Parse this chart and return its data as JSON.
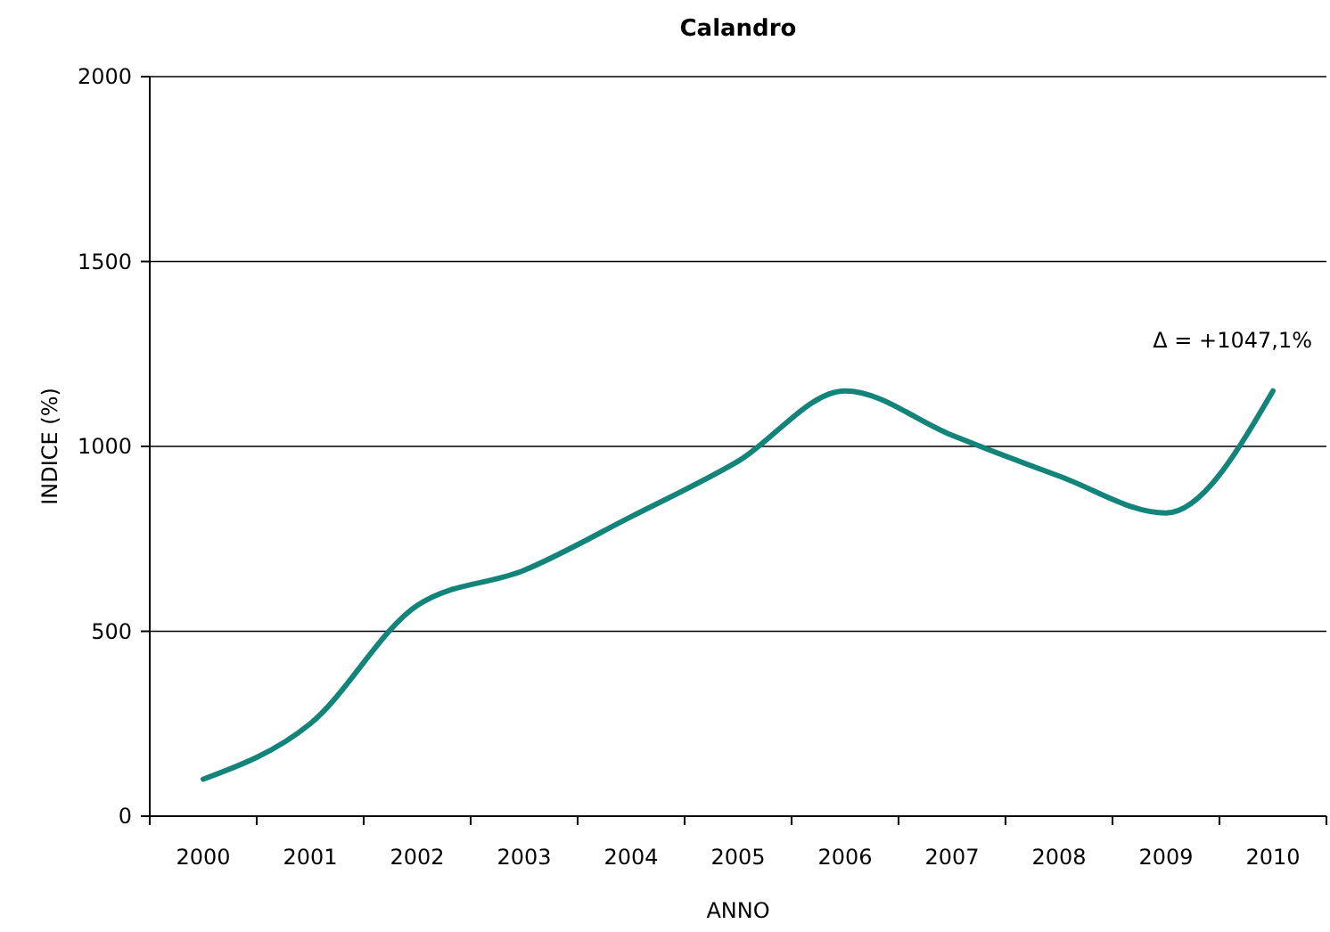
{
  "chart_data": {
    "type": "line",
    "title": "Calandro",
    "xlabel": "ANNO",
    "ylabel": "INDICE (%)",
    "categories": [
      "2000",
      "2001",
      "2002",
      "2003",
      "2004",
      "2005",
      "2006",
      "2007",
      "2008",
      "2009",
      "2010"
    ],
    "series": [
      {
        "color": "#138479",
        "values": [
          100,
          250,
          570,
          665,
          810,
          960,
          1150,
          1030,
          920,
          820,
          1150
        ]
      }
    ],
    "ylim": [
      0,
      2000
    ],
    "yticks": [
      0,
      500,
      1000,
      1500,
      2000
    ],
    "grid": "y",
    "marker": "none",
    "line_style": "solid",
    "annotations": [
      "Δ = +1047,1%"
    ]
  }
}
